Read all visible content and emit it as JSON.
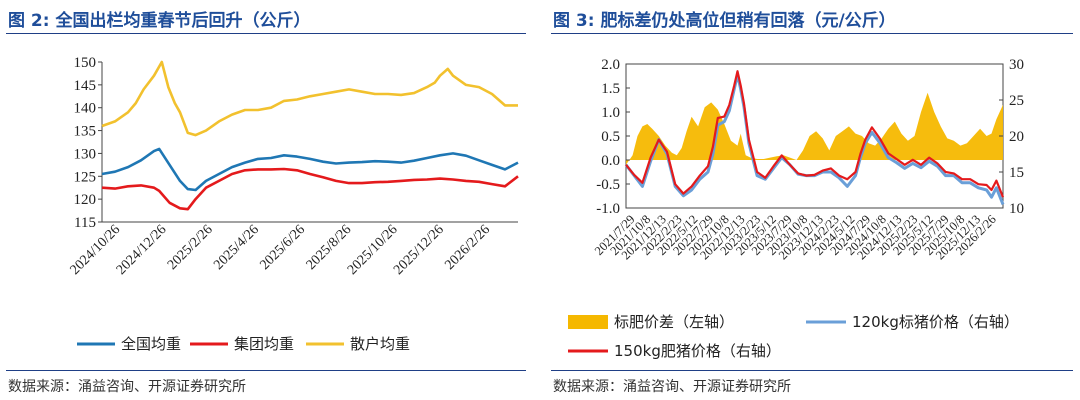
{
  "left": {
    "title": "图 2: 全国出栏均重春节后回升（公斤）",
    "source": "数据来源：涌益咨询、开源证券研究所",
    "chart_data": {
      "type": "line",
      "ylim": [
        115,
        150
      ],
      "yticks": [
        115,
        120,
        125,
        130,
        135,
        140,
        145,
        150
      ],
      "xticks": [
        "2024/10/26",
        "2024/12/26",
        "2025/2/26",
        "2025/4/26",
        "2025/6/26",
        "2025/8/26",
        "2025/10/26",
        "2025/12/26",
        "2026/2/26"
      ],
      "x_range": [
        0,
        16
      ],
      "legend_position": "bottom",
      "series": [
        {
          "name": "全国均重",
          "color": "#1f77b4",
          "x": [
            0,
            0.5,
            1,
            1.5,
            2,
            2.2,
            2.6,
            3,
            3.3,
            3.6,
            4,
            4.5,
            5,
            5.5,
            6,
            6.5,
            7,
            7.5,
            8,
            8.5,
            9,
            9.5,
            10,
            10.5,
            11,
            11.5,
            12,
            12.5,
            13,
            13.5,
            14,
            14.5,
            15,
            15.5,
            16
          ],
          "y": [
            125.5,
            126,
            127,
            128.5,
            130.5,
            131,
            127.5,
            124,
            122.2,
            122,
            124,
            125.5,
            127,
            128,
            128.8,
            129,
            129.6,
            129.3,
            128.8,
            128.2,
            127.8,
            128,
            128.1,
            128.3,
            128.2,
            128,
            128.4,
            129,
            129.6,
            130,
            129.5,
            128.5,
            127.5,
            126.5,
            128
          ]
        },
        {
          "name": "集团均重",
          "color": "#e41a1c",
          "x": [
            0,
            0.5,
            1,
            1.5,
            2,
            2.2,
            2.6,
            3,
            3.3,
            3.6,
            4,
            4.5,
            5,
            5.5,
            6,
            6.5,
            7,
            7.5,
            8,
            8.5,
            9,
            9.5,
            10,
            10.5,
            11,
            11.5,
            12,
            12.5,
            13,
            13.5,
            14,
            14.5,
            15,
            15.5,
            16
          ],
          "y": [
            122.5,
            122.3,
            122.8,
            123,
            122.5,
            121.8,
            119.2,
            118,
            117.8,
            120,
            122.5,
            124,
            125.5,
            126.3,
            126.5,
            126.5,
            126.6,
            126.3,
            125.5,
            124.8,
            124,
            123.5,
            123.5,
            123.7,
            123.8,
            124,
            124.2,
            124.3,
            124.5,
            124.3,
            124,
            123.8,
            123.3,
            122.8,
            125
          ]
        },
        {
          "name": "散户均重",
          "color": "#f2c12e",
          "x": [
            0,
            0.5,
            1,
            1.3,
            1.6,
            2,
            2.3,
            2.55,
            2.8,
            3,
            3.3,
            3.6,
            4,
            4.5,
            5,
            5.5,
            6,
            6.5,
            7,
            7.5,
            8,
            8.5,
            9,
            9.5,
            10,
            10.5,
            11,
            11.5,
            12,
            12.5,
            12.8,
            13,
            13.3,
            13.5,
            14,
            14.5,
            15,
            15.5,
            16
          ],
          "y": [
            136,
            137,
            139,
            141,
            144,
            147,
            150,
            144.5,
            141,
            139,
            134.5,
            134,
            135,
            137,
            138.5,
            139.5,
            139.5,
            140,
            141.5,
            141.8,
            142.5,
            143,
            143.5,
            144,
            143.5,
            143,
            143,
            142.8,
            143.2,
            144.5,
            145.5,
            147,
            148.5,
            147,
            145,
            144.5,
            143,
            140.5,
            140.5
          ]
        }
      ]
    }
  },
  "right": {
    "title": "图 3: 肥标差仍处高位但稍有回落（元/公斤）",
    "source": "数据来源：涌益咨询、开源证券研究所",
    "chart_data": {
      "type": "line+area",
      "ylim_left": [
        -1.0,
        2.0
      ],
      "yticks_left": [
        "-1.0",
        "-0.5",
        "0.0",
        "0.5",
        "1.0",
        "1.5",
        "2.0"
      ],
      "ylim_right": [
        10,
        30
      ],
      "yticks_right": [
        "10",
        "15",
        "20",
        "25",
        "30"
      ],
      "xticks": [
        "2021/7/29",
        "2021/10/8",
        "2021/12/13",
        "2022/2/23",
        "2022/5/12",
        "2022/7/29",
        "2022/10/8",
        "2022/12/13",
        "2023/2/23",
        "2023/5/12",
        "2023/7/29",
        "2023/10/8",
        "2023/12/13",
        "2024/2/23",
        "2024/5/12",
        "2024/7/29",
        "2024/10/8",
        "2024/12/13",
        "2025/2/23",
        "2025/5/12",
        "2025/7/29",
        "2025/10/8",
        "2025/12/13",
        "2026/2/26"
      ],
      "x_range": [
        0,
        23
      ],
      "legend_position": "bottom",
      "series": [
        {
          "name": "标肥价差（左轴）",
          "type": "area",
          "axis": "left",
          "color": "#f5b800",
          "x": [
            0,
            0.4,
            0.7,
            1,
            1.3,
            1.6,
            2,
            2.4,
            2.8,
            3.1,
            3.4,
            3.7,
            4,
            4.4,
            4.8,
            5.2,
            5.6,
            6,
            6.4,
            6.8,
            7,
            7.3,
            7.6,
            8,
            8.4,
            8.8,
            9.2,
            9.6,
            10,
            10.4,
            10.8,
            11.2,
            11.6,
            12,
            12.4,
            12.8,
            13.2,
            13.6,
            14,
            14.4,
            14.8,
            15.2,
            15.6,
            16,
            16.4,
            16.8,
            17.2,
            17.6,
            18,
            18.4,
            18.8,
            19.2,
            19.6,
            20,
            20.4,
            20.8,
            21.2,
            21.6,
            22,
            22.3,
            22.6,
            23
          ],
          "y": [
            -0.1,
            0.1,
            0.5,
            0.7,
            0.75,
            0.65,
            0.5,
            0.3,
            0.15,
            0.1,
            0.25,
            0.6,
            0.9,
            0.7,
            1.1,
            1.2,
            1.05,
            0.75,
            0.4,
            0.3,
            0.55,
            0.1,
            0.05,
            0.02,
            0.02,
            0.05,
            0.08,
            0.1,
            0.05,
            0.0,
            0.2,
            0.5,
            0.6,
            0.45,
            0.2,
            0.5,
            0.6,
            0.7,
            0.55,
            0.5,
            0.35,
            0.3,
            0.45,
            0.65,
            0.8,
            0.55,
            0.4,
            0.5,
            1.0,
            1.4,
            1.0,
            0.7,
            0.45,
            0.4,
            0.3,
            0.35,
            0.5,
            0.65,
            0.5,
            0.55,
            0.85,
            1.15
          ]
        },
        {
          "name": "120kg标猪价格（右轴）",
          "type": "line",
          "axis": "right",
          "color": "#6a9fd8",
          "x": [
            0,
            0.5,
            1,
            1.5,
            2,
            2.5,
            3,
            3.5,
            4,
            4.5,
            5,
            5.3,
            5.6,
            6,
            6.3,
            6.6,
            6.8,
            7,
            7.2,
            7.5,
            8,
            8.5,
            9,
            9.5,
            10,
            10.5,
            11,
            11.5,
            12,
            12.5,
            13,
            13.5,
            14,
            14.3,
            14.6,
            15,
            15.5,
            16,
            16.5,
            17,
            17.5,
            18,
            18.5,
            19,
            19.5,
            20,
            20.5,
            21,
            21.5,
            22,
            22.3,
            22.6,
            23
          ],
          "y": [
            16,
            14.5,
            13,
            16.5,
            19.5,
            17.5,
            13,
            11.7,
            12.5,
            14,
            15,
            17.5,
            21.5,
            22,
            23.5,
            26.5,
            28.5,
            26.5,
            24,
            19,
            14.5,
            14,
            15.5,
            17,
            16,
            14.7,
            14.5,
            14.5,
            15,
            15,
            14.2,
            13,
            14.5,
            17,
            19,
            20.5,
            19,
            17,
            16.3,
            15.5,
            16.2,
            15.6,
            16.5,
            15.8,
            14.5,
            14.5,
            13.5,
            13.5,
            12.8,
            12.5,
            11.5,
            12.8,
            10.5
          ]
        },
        {
          "name": "150kg肥猪价格（右轴）",
          "type": "line",
          "axis": "right",
          "color": "#e41a1c",
          "x": [
            0,
            0.5,
            1,
            1.5,
            2,
            2.5,
            3,
            3.5,
            4,
            4.5,
            5,
            5.3,
            5.6,
            6,
            6.3,
            6.6,
            6.8,
            7,
            7.2,
            7.5,
            8,
            8.5,
            9,
            9.5,
            10,
            10.5,
            11,
            11.5,
            12,
            12.5,
            13,
            13.5,
            14,
            14.3,
            14.6,
            15,
            15.5,
            16,
            16.5,
            17,
            17.5,
            18,
            18.5,
            19,
            19.5,
            20,
            20.5,
            21,
            21.5,
            22,
            22.3,
            22.6,
            23
          ],
          "y": [
            16,
            14.6,
            13.5,
            17,
            19.5,
            17.8,
            13.3,
            12,
            13,
            14.5,
            15.8,
            18.5,
            22.5,
            22.7,
            24.3,
            27,
            29,
            27,
            24.5,
            19.5,
            15,
            14.2,
            15.8,
            17.3,
            16,
            14.8,
            14.5,
            14.6,
            15.2,
            15.5,
            14.5,
            14,
            15,
            17.5,
            19.5,
            21.2,
            19.6,
            17.6,
            16.8,
            16,
            16.7,
            16,
            17,
            16.2,
            15,
            14.8,
            14,
            14,
            13.3,
            13.2,
            12.5,
            13.8,
            11.5
          ]
        }
      ]
    }
  }
}
